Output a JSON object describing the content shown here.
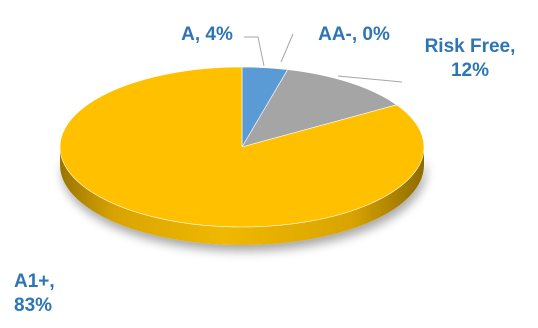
{
  "chart_data": {
    "type": "pie",
    "style": "3d",
    "slices": [
      {
        "label": "A",
        "value": 4,
        "color": "#5B9BD5"
      },
      {
        "label": "AA-",
        "value": 0,
        "color": "#264478"
      },
      {
        "label": "Risk Free",
        "value": 12,
        "color": "#A5A5A5"
      },
      {
        "label": "A1+",
        "value": 83,
        "color": "#FFC000"
      }
    ],
    "data_labels": [
      {
        "lines": [
          "A, 4%"
        ]
      },
      {
        "lines": [
          "AA-, 0%"
        ]
      },
      {
        "lines": [
          "Risk Free,",
          "12%"
        ]
      },
      {
        "lines": [
          "A1+,",
          "83%"
        ]
      }
    ],
    "label_color": "#2E75B6",
    "leader_line_color": "#A6A6A6"
  }
}
